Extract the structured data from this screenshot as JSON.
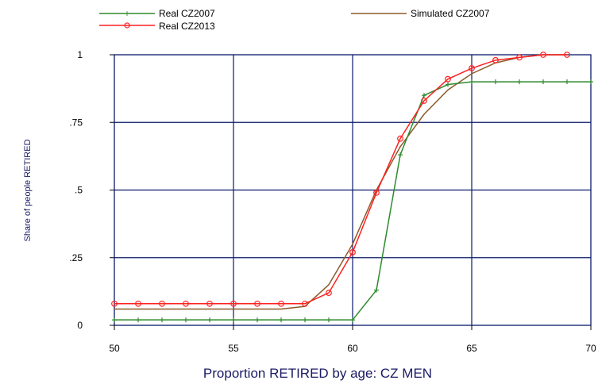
{
  "chart_data": {
    "type": "line",
    "title": "",
    "xlabel": "Proportion RETIRED by age: CZ MEN",
    "ylabel": "Share of people RETIRED",
    "xlim": [
      50,
      70
    ],
    "ylim": [
      0,
      1
    ],
    "xticks": [
      50,
      55,
      60,
      65,
      70
    ],
    "xtick_labels": [
      "50",
      "55",
      "60",
      "65",
      "70"
    ],
    "yticks": [
      0,
      0.25,
      0.5,
      0.75,
      1
    ],
    "ytick_labels": [
      "0",
      ".25",
      ".5",
      ".75",
      "1"
    ],
    "grid": true,
    "legend_position": "top",
    "series": [
      {
        "name": "Real CZ2007",
        "color": "#2e8b2e",
        "marker": "plus",
        "x": [
          50,
          51,
          52,
          53,
          54,
          55,
          56,
          57,
          58,
          59,
          60,
          61,
          62,
          63,
          64,
          65,
          66,
          67,
          68,
          69,
          70
        ],
        "y": [
          0.02,
          0.02,
          0.02,
          0.02,
          0.02,
          0.02,
          0.02,
          0.02,
          0.02,
          0.02,
          0.02,
          0.13,
          0.63,
          0.85,
          0.89,
          0.9,
          0.9,
          0.9,
          0.9,
          0.9,
          0.9
        ]
      },
      {
        "name": "Simulated CZ2007",
        "color": "#8b5a2b",
        "marker": "none",
        "x": [
          50,
          51,
          52,
          53,
          54,
          55,
          56,
          57,
          58,
          59,
          60,
          61,
          62,
          63,
          64,
          65,
          66,
          67,
          68,
          69
        ],
        "y": [
          0.06,
          0.06,
          0.06,
          0.06,
          0.06,
          0.06,
          0.06,
          0.06,
          0.07,
          0.15,
          0.3,
          0.5,
          0.66,
          0.78,
          0.87,
          0.93,
          0.97,
          0.99,
          1.0,
          1.0
        ]
      },
      {
        "name": "Real CZ2013",
        "color": "#ff2020",
        "marker": "circle",
        "x": [
          50,
          51,
          52,
          53,
          54,
          55,
          56,
          57,
          58,
          59,
          60,
          61,
          62,
          63,
          64,
          65,
          66,
          67,
          68,
          69
        ],
        "y": [
          0.08,
          0.08,
          0.08,
          0.08,
          0.08,
          0.08,
          0.08,
          0.08,
          0.08,
          0.12,
          0.27,
          0.49,
          0.69,
          0.83,
          0.91,
          0.95,
          0.98,
          0.99,
          1.0,
          1.0
        ]
      }
    ]
  }
}
